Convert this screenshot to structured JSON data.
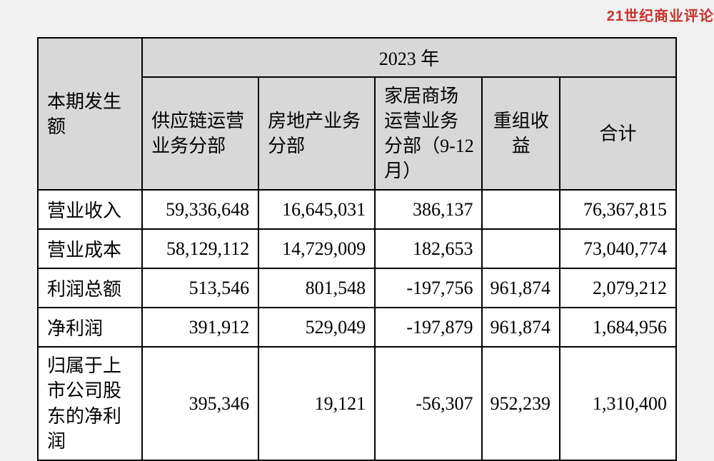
{
  "watermark": {
    "text": "21世纪商业评论",
    "color": "#c5322d"
  },
  "table": {
    "header_bg": "#d8d8d8",
    "border_color": "#000000",
    "year_label": "2023 年",
    "corner_label": "本期发生额",
    "columns": [
      "供应链运营业务分部",
      "房地产业务分部",
      "家居商场运营业务分部（9-12 月）",
      "重组收益",
      "合计"
    ],
    "rows": [
      {
        "label": "营业收入",
        "cells": [
          "59,336,648",
          "16,645,031",
          "386,137",
          "",
          "76,367,815"
        ]
      },
      {
        "label": "营业成本",
        "cells": [
          "58,129,112",
          "14,729,009",
          "182,653",
          "",
          "73,040,774"
        ]
      },
      {
        "label": "利润总额",
        "cells": [
          "513,546",
          "801,548",
          "-197,756",
          "961,874",
          "2,079,212"
        ]
      },
      {
        "label": "净利润",
        "cells": [
          "391,912",
          "529,049",
          "-197,879",
          "961,874",
          "1,684,956"
        ]
      },
      {
        "label": "归属于上市公司股东的净利润",
        "cells": [
          "395,346",
          "19,121",
          "-56,307",
          "952,239",
          "1,310,400"
        ]
      }
    ]
  }
}
